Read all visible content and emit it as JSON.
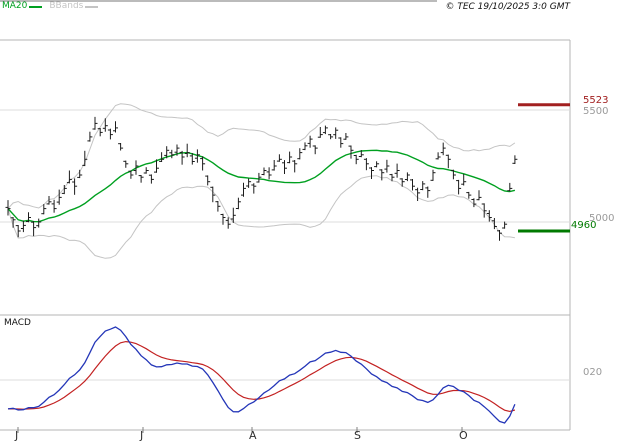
{
  "header": {
    "copyright": "© TEC 19/10/2025 3:0 GMT"
  },
  "legend": {
    "ma": {
      "label": "MA20"
    },
    "bbands": {
      "label": "BBands"
    }
  },
  "macd_panel": {
    "title": "MACD",
    "axis_label": "020"
  },
  "x_axis": {
    "months": [
      {
        "label": "J",
        "x": 18
      },
      {
        "label": "J",
        "x": 143
      },
      {
        "label": "A",
        "x": 252
      },
      {
        "label": "S",
        "x": 357
      },
      {
        "label": "O",
        "x": 462
      }
    ]
  },
  "chart_data": {
    "type": "ohlc-bar",
    "panels": [
      "price",
      "macd"
    ],
    "levels": {
      "resistance": {
        "label": "5523",
        "value": 5523
      },
      "support": {
        "label": "4960",
        "value": 4960
      },
      "grid_upper": {
        "label": "5500",
        "value": 5500
      },
      "grid_lower": {
        "label": "5000",
        "value": 5000
      }
    },
    "price_axis": {
      "gridlines": [
        5500,
        5000
      ],
      "ylim": [
        4570,
        5810
      ]
    },
    "closes": [
      5060,
      5010,
      4960,
      4985,
      5020,
      4975,
      5000,
      5060,
      5090,
      5060,
      5110,
      5150,
      5190,
      5160,
      5210,
      5280,
      5380,
      5440,
      5400,
      5430,
      5390,
      5420,
      5330,
      5260,
      5210,
      5250,
      5200,
      5230,
      5190,
      5240,
      5280,
      5320,
      5300,
      5330,
      5290,
      5310,
      5270,
      5300,
      5260,
      5180,
      5120,
      5070,
      5020,
      4990,
      5030,
      5090,
      5150,
      5180,
      5160,
      5200,
      5230,
      5210,
      5250,
      5280,
      5240,
      5290,
      5260,
      5310,
      5340,
      5370,
      5330,
      5390,
      5420,
      5380,
      5410,
      5350,
      5380,
      5320,
      5280,
      5300,
      5260,
      5230,
      5260,
      5220,
      5250,
      5200,
      5230,
      5180,
      5210,
      5160,
      5130,
      5170,
      5140,
      5220,
      5290,
      5330,
      5280,
      5210,
      5150,
      5180,
      5120,
      5080,
      5110,
      5050,
      5020,
      4980,
      4950,
      4990,
      5150,
      5280
    ],
    "indicators": {
      "ma_period": 20,
      "bbands_period": 20,
      "bbands_mult": 2,
      "macd": [
        12,
        26,
        9
      ]
    },
    "colors": {
      "ma": "#00a020",
      "bband": "#c4c4c4",
      "bar": "#1c1c1c",
      "macd_line": "#2436b8",
      "signal_line": "#c32222",
      "resistance": "#a22020",
      "support": "#007a00",
      "grid": "#dcdcdc",
      "frame": "#b5b5b5",
      "axis_text": "#9a9a9a",
      "tick": "#808080"
    }
  }
}
